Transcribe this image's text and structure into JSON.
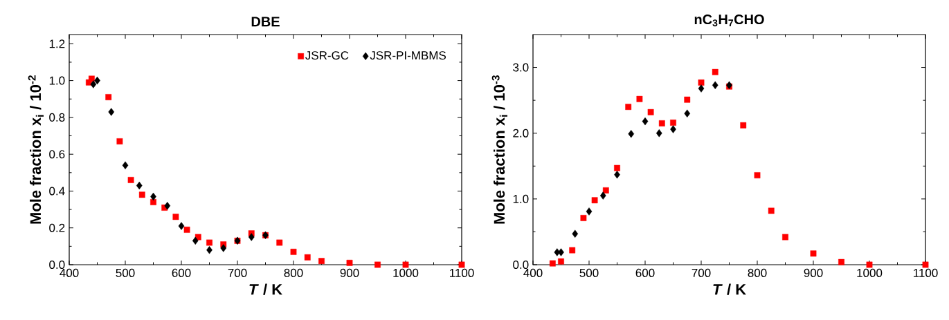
{
  "chart_data": [
    {
      "type": "scatter",
      "title": "DBE",
      "xlabel": "*T* / K",
      "ylabel": "Mole fraction x$_{i}$ / 10$^{-2}$",
      "xlim": [
        400,
        1100
      ],
      "ylim": [
        0,
        1.25
      ],
      "xticks": [
        400,
        500,
        600,
        700,
        800,
        900,
        1000,
        1100
      ],
      "yticks": [
        {
          "value": 0,
          "label": "0.0"
        },
        {
          "value": 0.2,
          "label": "0.2"
        },
        {
          "value": 0.4,
          "label": "0.4"
        },
        {
          "value": 0.6,
          "label": "0.6"
        },
        {
          "value": 0.8,
          "label": "0.8"
        },
        {
          "value": 1.0,
          "label": "1.0"
        },
        {
          "value": 1.2,
          "label": "1.2"
        }
      ],
      "legend": "top right",
      "grid": false,
      "series": [
        {
          "name": "JSR-GC",
          "color": "#ff0000",
          "marker": "square",
          "x": [
            435,
            440,
            470,
            490,
            510,
            530,
            550,
            570,
            590,
            610,
            630,
            650,
            675,
            700,
            725,
            750,
            775,
            800,
            825,
            850,
            900,
            950,
            1000,
            1100
          ],
          "values": [
            0.99,
            1.01,
            0.91,
            0.67,
            0.46,
            0.38,
            0.34,
            0.31,
            0.26,
            0.19,
            0.15,
            0.12,
            0.11,
            0.13,
            0.17,
            0.16,
            0.12,
            0.07,
            0.04,
            0.02,
            0.01,
            0.0,
            0.0,
            0.0
          ]
        },
        {
          "name": "JSR-PI-MBMS",
          "color": "#000000",
          "marker": "diamond",
          "x": [
            443,
            450,
            475,
            500,
            525,
            550,
            575,
            600,
            625,
            650,
            675,
            700,
            725,
            750
          ],
          "values": [
            0.98,
            1.0,
            0.83,
            0.54,
            0.43,
            0.37,
            0.32,
            0.21,
            0.13,
            0.08,
            0.09,
            0.13,
            0.15,
            0.16
          ]
        }
      ]
    },
    {
      "type": "scatter",
      "title": "nC$_{3}$H$_{7}$CHO",
      "xlabel": "*T* / K",
      "ylabel": "Mole fraction x$_{i}$ / 10$^{-3}$",
      "xlim": [
        400,
        1100
      ],
      "ylim": [
        0,
        3.5
      ],
      "xticks": [
        400,
        500,
        600,
        700,
        800,
        900,
        1000,
        1100
      ],
      "yticks": [
        {
          "value": 0,
          "label": "0.0"
        },
        {
          "value": 1.0,
          "label": "1.0"
        },
        {
          "value": 2.0,
          "label": "2.0"
        },
        {
          "value": 3.0,
          "label": "3.0"
        }
      ],
      "grid": false,
      "series": [
        {
          "color": "#ff0000",
          "marker": "square",
          "x": [
            435,
            450,
            470,
            490,
            510,
            530,
            550,
            570,
            590,
            610,
            630,
            650,
            675,
            700,
            725,
            750,
            775,
            800,
            825,
            850,
            900,
            950,
            1000,
            1100
          ],
          "values": [
            0.02,
            0.05,
            0.22,
            0.71,
            0.98,
            1.13,
            1.47,
            2.4,
            2.52,
            2.32,
            2.15,
            2.16,
            2.51,
            2.77,
            2.93,
            2.71,
            2.12,
            1.36,
            0.82,
            0.42,
            0.17,
            0.04,
            0.0,
            0.0
          ]
        },
        {
          "color": "#000000",
          "marker": "diamond",
          "x": [
            443,
            450,
            475,
            500,
            525,
            550,
            575,
            600,
            625,
            650,
            675,
            700,
            725,
            750
          ],
          "values": [
            0.19,
            0.19,
            0.47,
            0.81,
            1.05,
            1.37,
            1.99,
            2.18,
            2.0,
            2.06,
            2.3,
            2.68,
            2.73,
            2.73
          ]
        }
      ]
    }
  ]
}
